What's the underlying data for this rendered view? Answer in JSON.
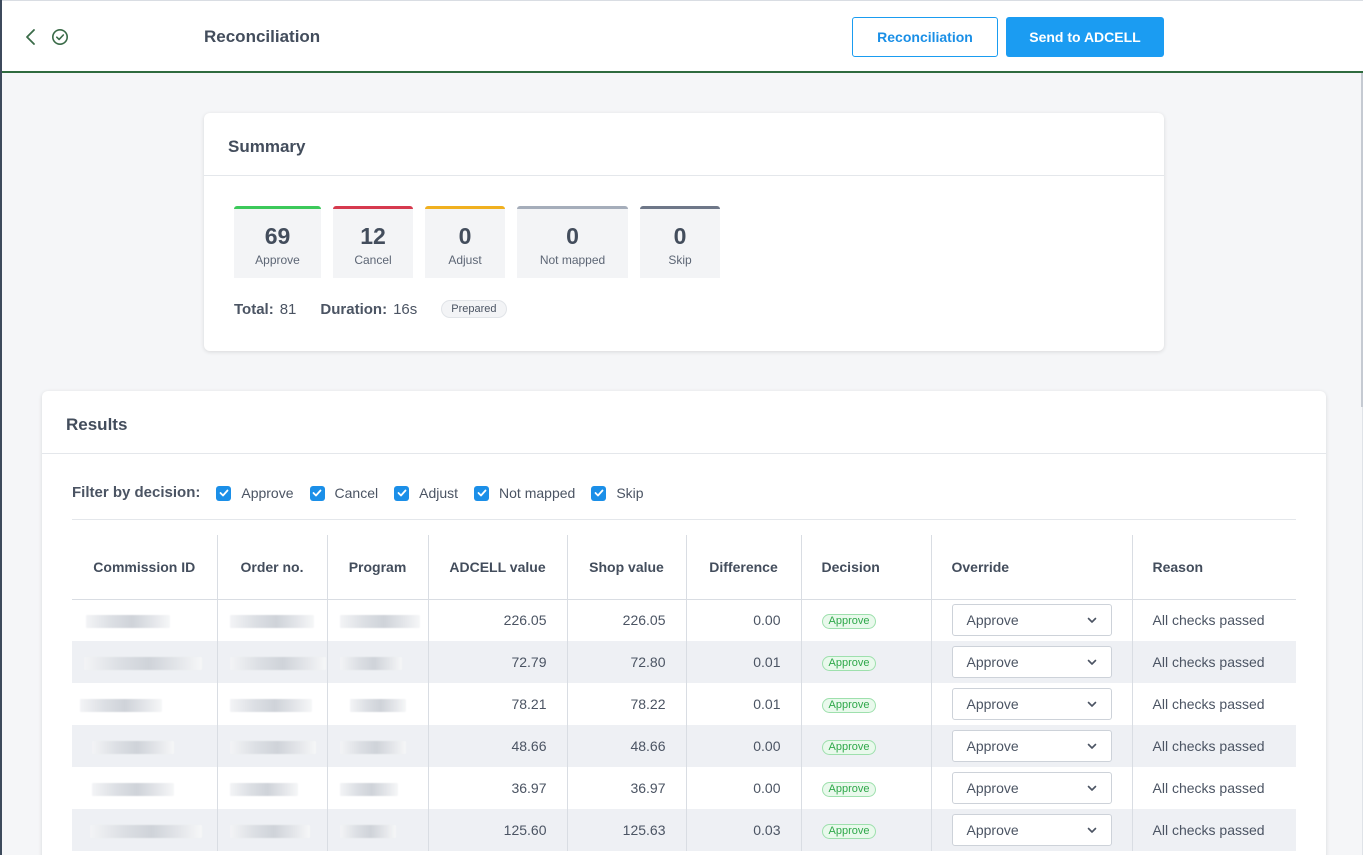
{
  "header": {
    "title": "Reconciliation",
    "btn_reconciliation": "Reconciliation",
    "btn_send": "Send to ADCELL"
  },
  "summary": {
    "title": "Summary",
    "stats": [
      {
        "value": "69",
        "label": "Approve",
        "color": "#3cc95a"
      },
      {
        "value": "12",
        "label": "Cancel",
        "color": "#d63a4e"
      },
      {
        "value": "0",
        "label": "Adjust",
        "color": "#f0b020"
      },
      {
        "value": "0",
        "label": "Not mapped",
        "color": "#a5adba"
      },
      {
        "value": "0",
        "label": "Skip",
        "color": "#6e7788"
      }
    ],
    "total_label": "Total:",
    "total_value": "81",
    "duration_label": "Duration:",
    "duration_value": "16s",
    "status": "Prepared"
  },
  "results": {
    "title": "Results",
    "filter_label": "Filter by decision:",
    "filters": [
      "Approve",
      "Cancel",
      "Adjust",
      "Not mapped",
      "Skip"
    ],
    "columns": [
      "Commission ID",
      "Order no.",
      "Program",
      "ADCELL value",
      "Shop value",
      "Difference",
      "Decision",
      "Override",
      "Reason"
    ],
    "rows": [
      {
        "adcell": "226.05",
        "shop": "226.05",
        "diff": "0.00",
        "decision": "Approve",
        "override": "Approve",
        "reason": "All checks passed"
      },
      {
        "adcell": "72.79",
        "shop": "72.80",
        "diff": "0.01",
        "decision": "Approve",
        "override": "Approve",
        "reason": "All checks passed"
      },
      {
        "adcell": "78.21",
        "shop": "78.22",
        "diff": "0.01",
        "decision": "Approve",
        "override": "Approve",
        "reason": "All checks passed"
      },
      {
        "adcell": "48.66",
        "shop": "48.66",
        "diff": "0.00",
        "decision": "Approve",
        "override": "Approve",
        "reason": "All checks passed"
      },
      {
        "adcell": "36.97",
        "shop": "36.97",
        "diff": "0.00",
        "decision": "Approve",
        "override": "Approve",
        "reason": "All checks passed"
      },
      {
        "adcell": "125.60",
        "shop": "125.63",
        "diff": "0.03",
        "decision": "Approve",
        "override": "Approve",
        "reason": "All checks passed"
      }
    ]
  },
  "icons": {
    "back": "chevron-left-icon",
    "status": "check-circle-icon",
    "checkbox": "checkmark-icon",
    "dropdown": "chevron-down-icon"
  },
  "colors": {
    "accent": "#1b9cf2",
    "approve": "#3cc95a",
    "cancel": "#d63a4e",
    "adjust": "#f0b020",
    "header_border": "#2f6b3f"
  }
}
